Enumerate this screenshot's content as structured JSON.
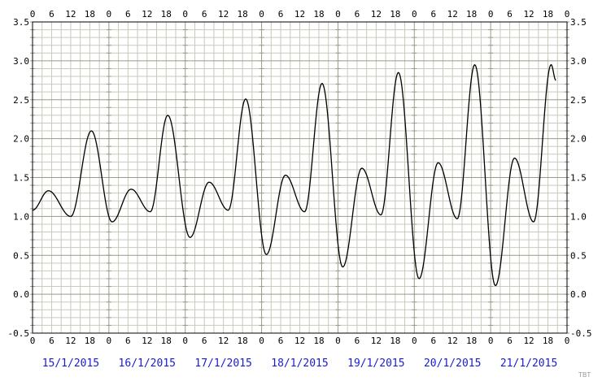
{
  "chart_data": {
    "type": "line",
    "title": "",
    "xlabel": "",
    "ylabel": "",
    "ylim": [
      -0.5,
      3.5
    ],
    "y_ticks": [
      "3.5",
      "3.0",
      "2.5",
      "2.0",
      "1.5",
      "1.0",
      "0.5",
      "0.0",
      "-0.5"
    ],
    "x_hour_ticks": [
      "0",
      "6",
      "12",
      "18",
      "0",
      "6",
      "12",
      "18",
      "0",
      "6",
      "12",
      "18",
      "0",
      "6",
      "12",
      "18",
      "0",
      "6",
      "12",
      "18",
      "0",
      "6",
      "12",
      "18",
      "0",
      "6",
      "12",
      "18",
      "0"
    ],
    "dates": [
      "15/1/2015",
      "16/1/2015",
      "17/1/2015",
      "18/1/2015",
      "19/1/2015",
      "20/1/2015",
      "21/1/2015"
    ],
    "grid": true,
    "x_unit": "hours since 15/1/2015 00:00",
    "series": [
      {
        "color": "#000000",
        "extrema": [
          [
            0,
            1.08
          ],
          [
            5,
            1.33
          ],
          [
            12,
            1.0
          ],
          [
            18.5,
            2.1
          ],
          [
            25,
            0.93
          ],
          [
            31,
            1.35
          ],
          [
            37,
            1.06
          ],
          [
            42.5,
            2.3
          ],
          [
            49.5,
            0.73
          ],
          [
            55.5,
            1.44
          ],
          [
            61.5,
            1.08
          ],
          [
            67,
            2.51
          ],
          [
            73.5,
            0.51
          ],
          [
            79.5,
            1.53
          ],
          [
            85.5,
            1.06
          ],
          [
            91,
            2.71
          ],
          [
            97.5,
            0.35
          ],
          [
            103.5,
            1.62
          ],
          [
            109.5,
            1.02
          ],
          [
            115,
            2.85
          ],
          [
            121.5,
            0.2
          ],
          [
            127.5,
            1.69
          ],
          [
            133.5,
            0.97
          ],
          [
            139,
            2.95
          ],
          [
            145.5,
            0.11
          ],
          [
            151.5,
            1.75
          ],
          [
            157.5,
            0.93
          ],
          [
            163,
            2.95
          ],
          [
            164.5,
            2.75
          ]
        ]
      }
    ]
  },
  "watermark": "TBT"
}
